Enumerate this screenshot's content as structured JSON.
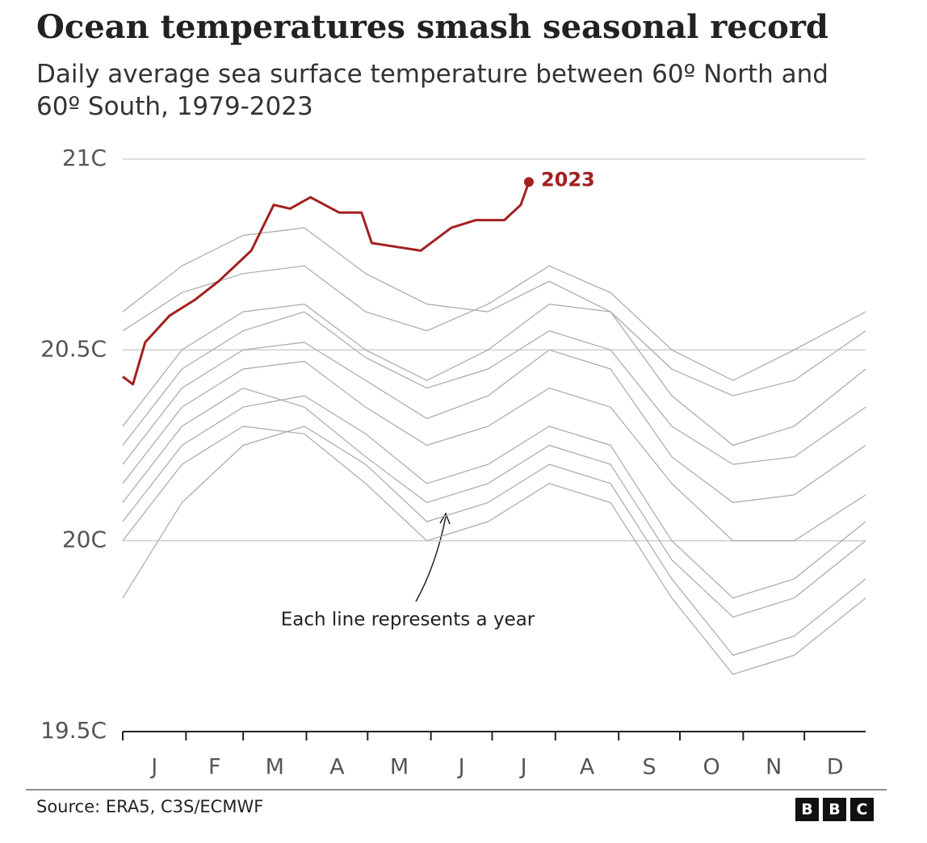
{
  "chart_data": {
    "type": "line",
    "title": "Ocean temperatures smash seasonal record",
    "subtitle": "Daily average sea surface temperature between 60º North and 60º South, 1979-2023",
    "annotation": "Each line represents a year",
    "source": "Source: ERA5, C3S/ECMWF",
    "logo": [
      "B",
      "B",
      "C"
    ],
    "xlim": [
      1,
      365
    ],
    "xticks": [
      1,
      32,
      60,
      91,
      121,
      152,
      182,
      213,
      244,
      274,
      305,
      335
    ],
    "month_labels": [
      "J",
      "F",
      "M",
      "A",
      "M",
      "J",
      "J",
      "A",
      "S",
      "O",
      "N",
      "D"
    ],
    "ylim": [
      19.5,
      21
    ],
    "yticks": [
      {
        "value": 19.5,
        "label": "19.5C"
      },
      {
        "value": 20,
        "label": "20C"
      },
      {
        "value": 20.5,
        "label": "20.5C"
      },
      {
        "value": 21,
        "label": "21C"
      }
    ],
    "grid": true,
    "series": [
      {
        "color": "#a8a8a8",
        "x": [
          1,
          30,
          60,
          90,
          120,
          150,
          180,
          210,
          240,
          270,
          300,
          330,
          365
        ],
        "values": [
          20.05,
          20.25,
          20.35,
          20.38,
          20.28,
          20.15,
          20.2,
          20.3,
          20.25,
          20.0,
          19.85,
          19.9,
          20.05
        ]
      },
      {
        "color": "#a8a8a8",
        "x": [
          1,
          30,
          60,
          90,
          120,
          150,
          180,
          210,
          240,
          270,
          300,
          330,
          365
        ],
        "values": [
          20.15,
          20.35,
          20.45,
          20.47,
          20.35,
          20.25,
          20.3,
          20.4,
          20.35,
          20.15,
          20.0,
          20.0,
          20.12
        ]
      },
      {
        "color": "#a8a8a8",
        "x": [
          1,
          30,
          60,
          90,
          120,
          150,
          180,
          210,
          240,
          270,
          300,
          330,
          365
        ],
        "values": [
          19.85,
          20.1,
          20.25,
          20.3,
          20.2,
          20.05,
          20.1,
          20.2,
          20.15,
          19.9,
          19.7,
          19.75,
          19.9
        ]
      },
      {
        "color": "#a8a8a8",
        "x": [
          1,
          30,
          60,
          90,
          120,
          150,
          180,
          210,
          240,
          270,
          300,
          330,
          365
        ],
        "values": [
          20.25,
          20.45,
          20.55,
          20.6,
          20.48,
          20.4,
          20.45,
          20.55,
          20.5,
          20.3,
          20.2,
          20.22,
          20.35
        ]
      },
      {
        "color": "#a8a8a8",
        "x": [
          1,
          30,
          60,
          90,
          120,
          150,
          180,
          210,
          240,
          270,
          300,
          330,
          365
        ],
        "values": [
          20.6,
          20.72,
          20.8,
          20.82,
          20.7,
          20.62,
          20.6,
          20.68,
          20.6,
          20.45,
          20.38,
          20.42,
          20.55
        ]
      },
      {
        "color": "#a8a8a8",
        "x": [
          1,
          30,
          60,
          90,
          120,
          150,
          180,
          210,
          240,
          270,
          300,
          330,
          365
        ],
        "values": [
          20.1,
          20.3,
          20.4,
          20.35,
          20.22,
          20.1,
          20.15,
          20.25,
          20.2,
          19.95,
          19.8,
          19.85,
          20.0
        ]
      },
      {
        "color": "#a8a8a8",
        "x": [
          1,
          30,
          60,
          90,
          120,
          150,
          180,
          210,
          240,
          270,
          300,
          330,
          365
        ],
        "values": [
          20.3,
          20.5,
          20.6,
          20.62,
          20.5,
          20.42,
          20.5,
          20.62,
          20.6,
          20.38,
          20.25,
          20.3,
          20.45
        ]
      },
      {
        "color": "#a8a8a8",
        "x": [
          1,
          30,
          60,
          90,
          120,
          150,
          180,
          210,
          240,
          270,
          300,
          330,
          365
        ],
        "values": [
          20.0,
          20.2,
          20.3,
          20.28,
          20.15,
          20.0,
          20.05,
          20.15,
          20.1,
          19.85,
          19.65,
          19.7,
          19.85
        ]
      },
      {
        "color": "#a8a8a8",
        "x": [
          1,
          30,
          60,
          90,
          120,
          150,
          180,
          210,
          240,
          270,
          300,
          330,
          365
        ],
        "values": [
          20.2,
          20.4,
          20.5,
          20.52,
          20.42,
          20.32,
          20.38,
          20.5,
          20.45,
          20.22,
          20.1,
          20.12,
          20.25
        ]
      },
      {
        "color": "#a8a8a8",
        "x": [
          1,
          30,
          60,
          90,
          120,
          150,
          180,
          210,
          240,
          270,
          300,
          330,
          365
        ],
        "values": [
          20.55,
          20.65,
          20.7,
          20.72,
          20.6,
          20.55,
          20.62,
          20.72,
          20.65,
          20.5,
          20.42,
          20.5,
          20.6
        ]
      },
      {
        "name": "2023",
        "color": "#a32020",
        "x": [
          1,
          6,
          12,
          24,
          36,
          48,
          64,
          75,
          83,
          93,
          107,
          118,
          123,
          135,
          147,
          162,
          174,
          188,
          196,
          200
        ],
        "values": [
          20.43,
          20.41,
          20.52,
          20.59,
          20.63,
          20.68,
          20.76,
          20.88,
          20.87,
          20.9,
          20.86,
          20.86,
          20.78,
          20.77,
          20.76,
          20.82,
          20.84,
          20.84,
          20.88,
          20.94
        ]
      }
    ]
  }
}
